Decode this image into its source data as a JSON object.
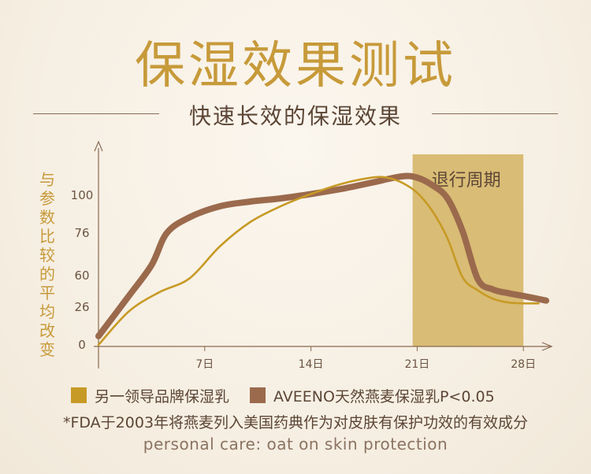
{
  "header": {
    "title": "保湿效果测试",
    "subtitle": "快速长效的保湿效果"
  },
  "colors": {
    "title": "#c79a3a",
    "competitor": "#c79a25",
    "aveeno": "#9b6a4d",
    "withdrawal": "#d9bc75",
    "axis": "#8a6a52"
  },
  "footnote": {
    "fda": "*FDA于2003年将燕麦列入美国药典作为对皮肤有保护功效的有效成分",
    "english": "personal care: oat on skin protection"
  },
  "chart_data": {
    "type": "line",
    "ylabel": "与参数比较的平均改变",
    "x_ticks": [
      "7日",
      "14日",
      "21日",
      "28日"
    ],
    "x_tick_values": [
      7,
      14,
      21,
      28
    ],
    "xlim": [
      0,
      29.6
    ],
    "y_ticks": [
      "0",
      "26",
      "60",
      "76",
      "100"
    ],
    "shaded_region": {
      "label": "退行周期",
      "x_start": 20.7,
      "x_end": 28
    },
    "series": [
      {
        "name": "另一领导品牌保湿乳",
        "x": [
          0,
          2,
          4,
          6,
          8,
          10,
          12,
          14,
          16,
          18,
          19,
          20,
          21,
          22,
          23,
          24,
          25,
          26,
          27,
          28,
          29
        ],
        "y": [
          0,
          23,
          42,
          57,
          71,
          83,
          93,
          101,
          109,
          114,
          114,
          110,
          102,
          90,
          74,
          58,
          44,
          35,
          31,
          30,
          30
        ]
      },
      {
        "name": "AVEENO天然燕麦保湿乳P<0.05",
        "x": [
          0,
          2,
          3.5,
          4.5,
          6,
          8,
          10,
          12,
          14,
          16,
          18,
          20,
          21,
          22,
          23,
          24,
          25,
          26,
          27,
          28,
          29.5
        ],
        "y": [
          6,
          38,
          64,
          76,
          86,
          93,
          96,
          98,
          101,
          105,
          110,
          115,
          114,
          108,
          98,
          77,
          56,
          45,
          41,
          38,
          33
        ]
      }
    ]
  }
}
